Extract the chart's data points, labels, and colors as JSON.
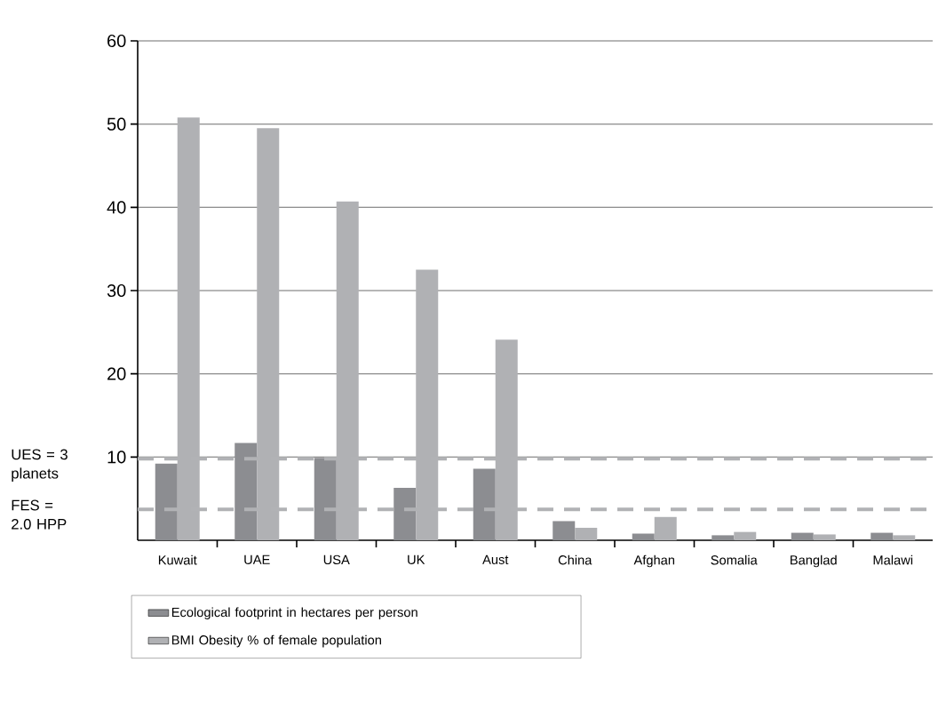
{
  "chart_data": {
    "type": "bar",
    "categories": [
      "Kuwait",
      "UAE",
      "USA",
      "UK",
      "Aust",
      "China",
      "Afghan",
      "Somalia",
      "Banglad",
      "Malawi"
    ],
    "series": [
      {
        "name": "Ecological footprint in hectares per person",
        "color": "#8c8d91",
        "values": [
          9.2,
          11.7,
          9.9,
          6.3,
          8.6,
          2.3,
          0.8,
          0.6,
          0.9,
          0.9
        ]
      },
      {
        "name": "BMI Obesity % of female population",
        "color": "#b0b1b4",
        "values": [
          50.8,
          49.5,
          40.7,
          32.5,
          24.1,
          1.5,
          2.8,
          1.0,
          0.7,
          0.6
        ]
      }
    ],
    "ylim": [
      0,
      60
    ],
    "yticks": [
      10,
      20,
      30,
      40,
      50,
      60
    ],
    "grid": "y",
    "legend": "bottom",
    "ref_lines": [
      {
        "axis": "y",
        "value": 9.8,
        "color": "#b1b2b5",
        "line_style": "dashed"
      },
      {
        "axis": "y",
        "value": 3.7,
        "color": "#b1b2b5",
        "line_style": "dashed"
      }
    ],
    "annotations": [
      "UES = 3 planets",
      "FES = 2.0 HPP"
    ]
  }
}
